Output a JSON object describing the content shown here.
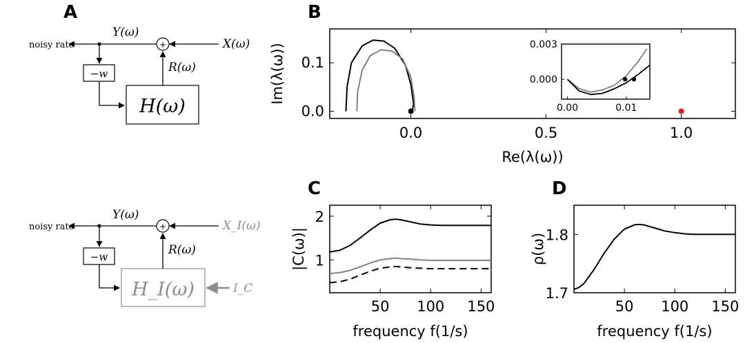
{
  "panels": {
    "a": "A",
    "b": "B",
    "c": "C",
    "d": "D"
  },
  "diagram_top": {
    "output_label": "noisy rate",
    "y_label": "Y(ω)",
    "x_label": "X(ω)",
    "r_label": "R(ω)",
    "gain_label": "−w",
    "block_label": "H(ω)",
    "sum_symbol": "+"
  },
  "diagram_bottom": {
    "output_label": "noisy rate",
    "y_label": "Y(ω)",
    "x_label": "X_I(ω)",
    "r_label": "R(ω)",
    "gain_label": "−w",
    "block_label": "H_I(ω)",
    "current_label": "I_C",
    "sum_symbol": "+",
    "gray_color": "#8c8c8c"
  },
  "chart_data": [
    {
      "id": "B",
      "type": "line",
      "xlabel": "Re(λ(ω))",
      "ylabel": "Im(λ(ω))",
      "xlim": [
        -0.3,
        1.2
      ],
      "ylim": [
        -0.015,
        0.17
      ],
      "xticks": [
        "0.0",
        "0.5",
        "1.0"
      ],
      "yticks": [
        "0.0",
        "0.1"
      ],
      "series": [
        {
          "color": "#000000",
          "x": [
            -0.24,
            -0.236,
            -0.22,
            -0.18,
            -0.14,
            -0.1,
            -0.06,
            -0.02,
            0.0,
            0.01,
            0.005
          ],
          "y": [
            0.0,
            0.05,
            0.1,
            0.135,
            0.147,
            0.145,
            0.13,
            0.095,
            0.055,
            0.015,
            0.0
          ]
        },
        {
          "color": "#808080",
          "x": [
            -0.2,
            -0.197,
            -0.18,
            -0.15,
            -0.11,
            -0.07,
            -0.03,
            0.0,
            0.012,
            0.015
          ],
          "y": [
            0.0,
            0.04,
            0.085,
            0.115,
            0.127,
            0.124,
            0.108,
            0.07,
            0.03,
            0.0
          ]
        }
      ],
      "points": [
        {
          "x": 0.0,
          "y": 0.0,
          "color": "#000000"
        },
        {
          "x": 1.0,
          "y": 0.0,
          "color": "#e41a1c"
        }
      ],
      "inset": {
        "xlim": [
          -0.001,
          0.014
        ],
        "ylim": [
          -0.0017,
          0.003
        ],
        "xticks": [
          "0.00",
          "0.01"
        ],
        "yticks": [
          "0.000",
          "0.003"
        ],
        "series": [
          {
            "color": "#808080",
            "x": [
              0.0,
              0.002,
              0.004,
              0.006,
              0.008,
              0.01,
              0.012,
              0.0135
            ],
            "y": [
              0.0,
              -0.0008,
              -0.0011,
              -0.0009,
              -0.0005,
              0.0003,
              0.0015,
              0.0026
            ]
          },
          {
            "color": "#000000",
            "x": [
              0.0,
              0.002,
              0.004,
              0.006,
              0.008,
              0.01,
              0.012,
              0.014
            ],
            "y": [
              0.0,
              -0.001,
              -0.0013,
              -0.0012,
              -0.0008,
              -0.0003,
              0.0004,
              0.0012
            ]
          }
        ],
        "points": [
          {
            "x": 0.0098,
            "y": 0.0,
            "color": "#000000"
          },
          {
            "x": 0.0113,
            "y": 0.0,
            "color": "#000000"
          }
        ]
      }
    },
    {
      "id": "C",
      "type": "line",
      "xlabel": "frequency f(1/s)",
      "ylabel": "|C(ω)|",
      "xlim": [
        0,
        160
      ],
      "ylim": [
        0.25,
        2.25
      ],
      "xticks": [
        "50",
        "100",
        "150"
      ],
      "yticks": [
        "1",
        "2"
      ],
      "series": [
        {
          "color": "#000000",
          "style": "solid",
          "x": [
            0,
            10,
            20,
            30,
            40,
            50,
            60,
            65,
            70,
            80,
            90,
            100,
            110,
            120,
            130,
            140,
            150,
            160
          ],
          "y": [
            1.18,
            1.22,
            1.33,
            1.5,
            1.68,
            1.84,
            1.92,
            1.93,
            1.92,
            1.87,
            1.82,
            1.8,
            1.79,
            1.79,
            1.79,
            1.79,
            1.79,
            1.79
          ]
        },
        {
          "color": "#808080",
          "style": "solid",
          "x": [
            0,
            10,
            20,
            30,
            40,
            50,
            60,
            65,
            70,
            80,
            90,
            100,
            110,
            120,
            130,
            140,
            150,
            160
          ],
          "y": [
            0.69,
            0.71,
            0.76,
            0.84,
            0.93,
            1.0,
            1.03,
            1.04,
            1.03,
            1.02,
            1.0,
            0.99,
            0.99,
            0.99,
            0.99,
            0.99,
            0.99,
            0.99
          ]
        },
        {
          "color": "#000000",
          "style": "dashed",
          "x": [
            0,
            10,
            20,
            30,
            40,
            50,
            60,
            65,
            70,
            80,
            90,
            100,
            110,
            120,
            130,
            140,
            150,
            160
          ],
          "y": [
            0.48,
            0.5,
            0.56,
            0.65,
            0.74,
            0.81,
            0.84,
            0.85,
            0.84,
            0.82,
            0.81,
            0.8,
            0.8,
            0.8,
            0.8,
            0.8,
            0.8,
            0.8
          ]
        }
      ]
    },
    {
      "id": "D",
      "type": "line",
      "xlabel": "frequency f(1/s)",
      "ylabel": "ρ(ω)",
      "xlim": [
        0,
        160
      ],
      "ylim": [
        1.7,
        1.85
      ],
      "xticks": [
        "50",
        "100",
        "150"
      ],
      "yticks": [
        "1.7",
        "1.8"
      ],
      "series": [
        {
          "color": "#000000",
          "style": "solid",
          "x": [
            0,
            5,
            10,
            20,
            30,
            40,
            50,
            60,
            65,
            70,
            80,
            90,
            100,
            110,
            120,
            130,
            140,
            150,
            160
          ],
          "y": [
            1.706,
            1.709,
            1.716,
            1.74,
            1.768,
            1.792,
            1.809,
            1.8165,
            1.817,
            1.816,
            1.811,
            1.806,
            1.803,
            1.801,
            1.8,
            1.8,
            1.8,
            1.8,
            1.8
          ]
        }
      ]
    }
  ]
}
